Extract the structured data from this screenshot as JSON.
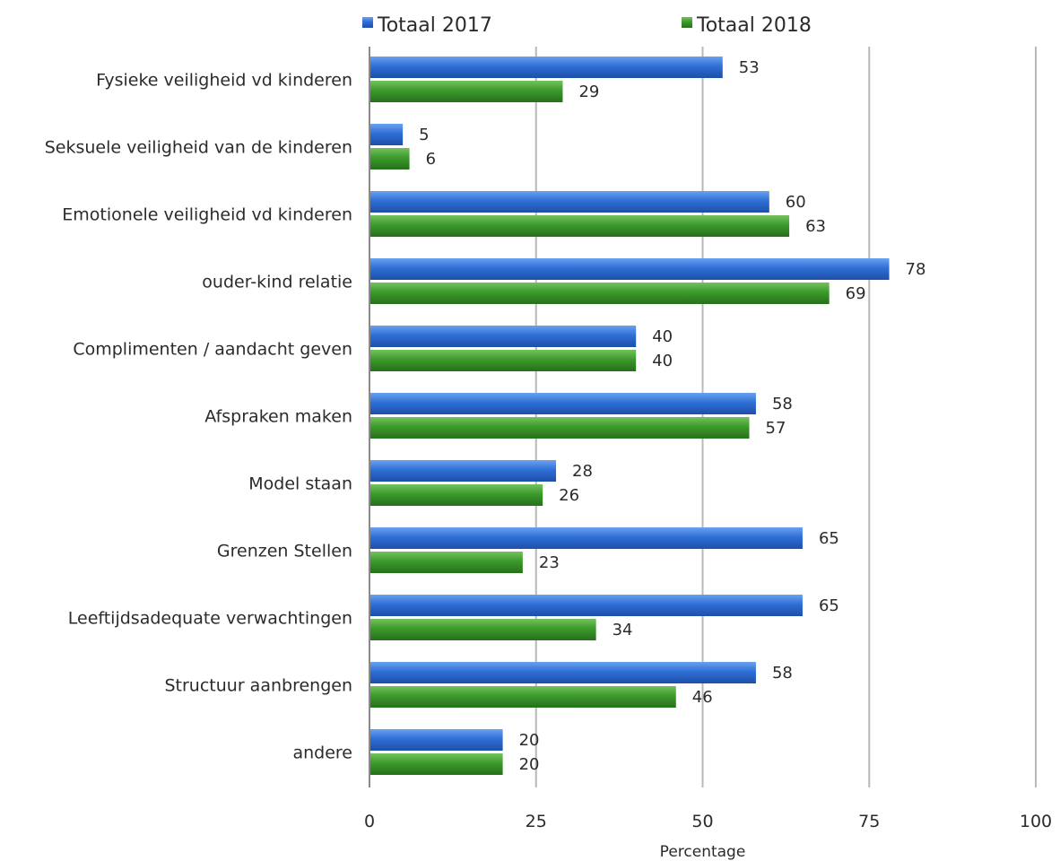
{
  "chart_data": {
    "type": "bar",
    "orientation": "horizontal",
    "title": "",
    "xlabel": "Percentage",
    "ylabel": "",
    "xlim": [
      0,
      100
    ],
    "xticks": [
      0,
      25,
      50,
      75,
      100
    ],
    "grid": true,
    "legend_position": "top",
    "categories": [
      "Fysieke veiligheid vd kinderen",
      "Seksuele veiligheid van de kinderen",
      "Emotionele veiligheid vd kinderen",
      "ouder-kind relatie",
      "Complimenten / aandacht geven",
      "Afspraken maken",
      "Model staan",
      "Grenzen Stellen",
      "Leeftijdsadequate verwachtingen",
      "Structuur aanbrengen",
      "andere"
    ],
    "series": [
      {
        "name": "Totaal 2017",
        "color": "#2f6fd6",
        "values": [
          53,
          5,
          60,
          78,
          40,
          58,
          28,
          65,
          65,
          58,
          20
        ]
      },
      {
        "name": "Totaal 2018",
        "color": "#3c9a2c",
        "values": [
          29,
          6,
          63,
          69,
          40,
          57,
          26,
          23,
          34,
          46,
          20
        ]
      }
    ]
  }
}
